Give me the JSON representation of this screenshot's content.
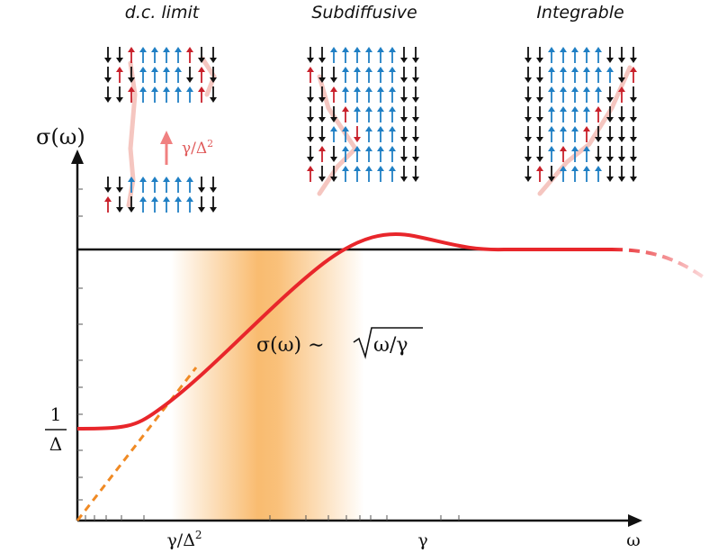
{
  "panels": [
    {
      "title": "d.c. limit"
    },
    {
      "title": "Subdiffusive"
    },
    {
      "title": "Integrable"
    }
  ],
  "rate_annotation": {
    "base": "γ/Δ",
    "sup": "2"
  },
  "y_axis": {
    "label": "σ(ω)",
    "tick": {
      "numerator": "1",
      "denominator": "Δ"
    }
  },
  "x_axis": {
    "ticks": [
      {
        "base": "γ/Δ",
        "sup": "2"
      },
      {
        "base": "γ"
      }
    ],
    "label": "ω"
  },
  "formula": {
    "lhs": "σ(ω) ∼",
    "radicand": "ω/γ"
  }
}
